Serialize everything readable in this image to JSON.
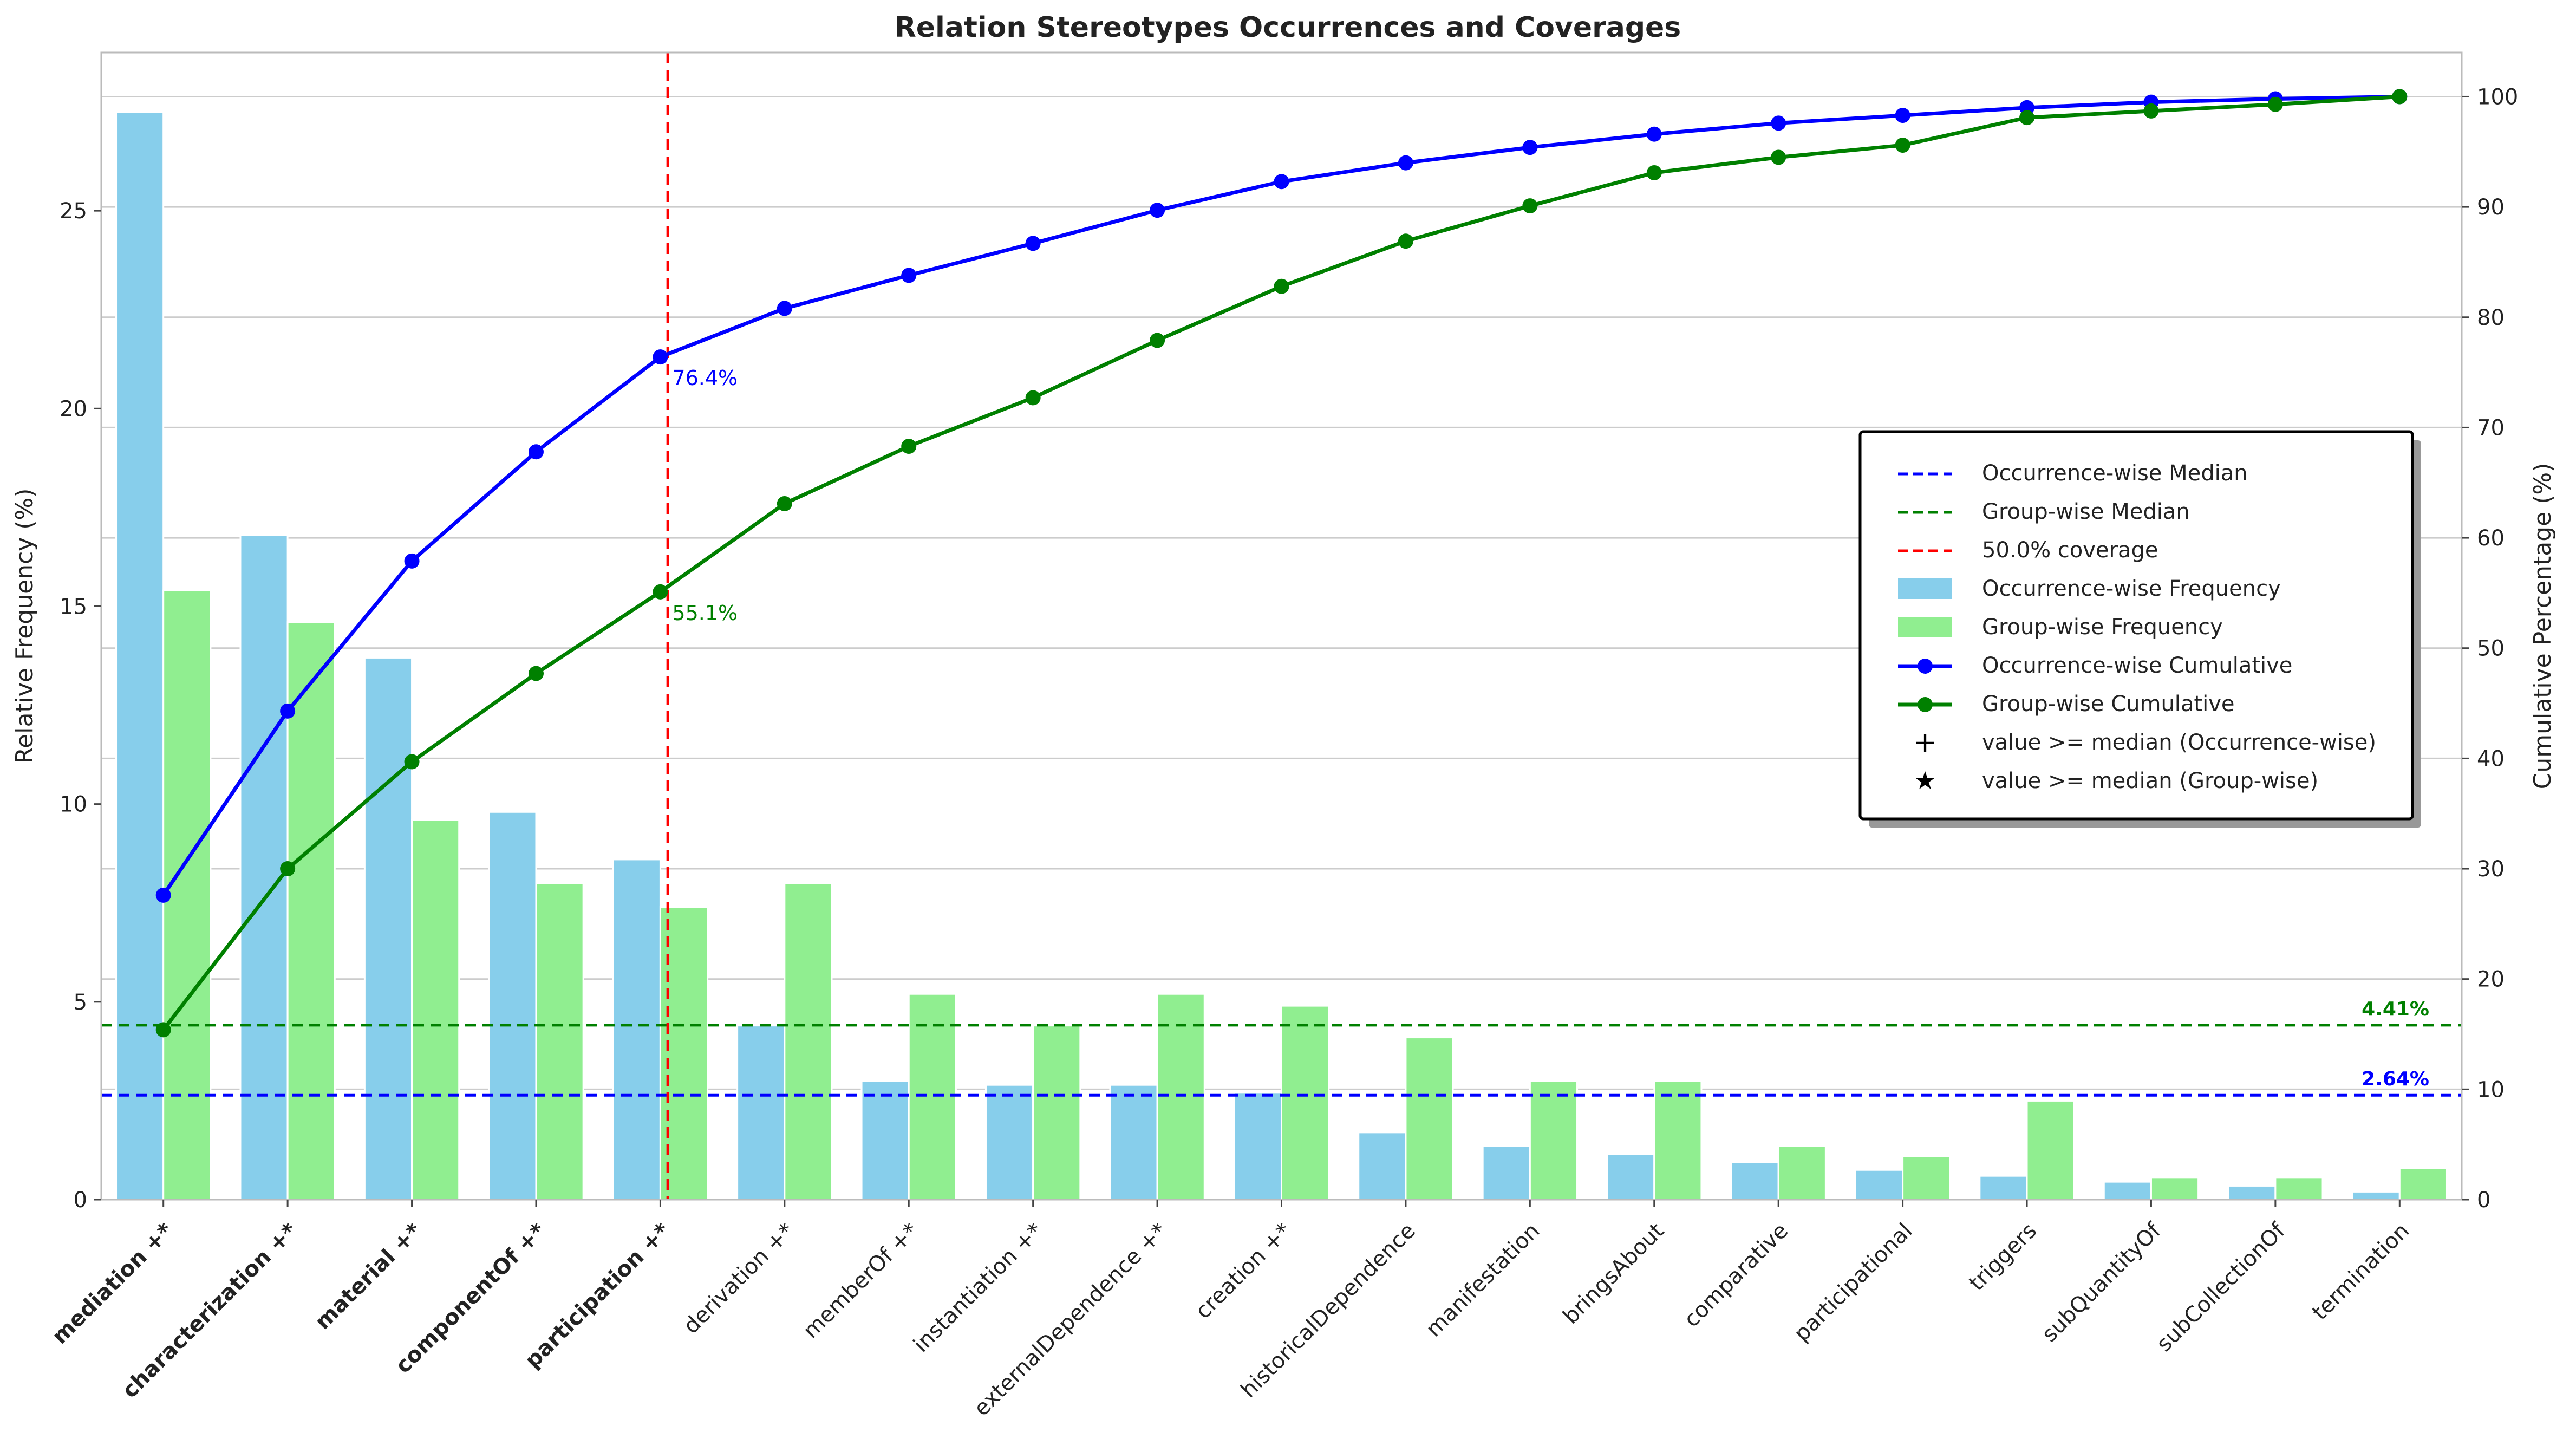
{
  "chart_data": {
    "type": "bar",
    "title": "Relation Stereotypes Occurrences and Coverages",
    "ylabel_left": "Relative Frequency (%)",
    "ylabel_right": "Cumulative Percentage (%)",
    "xlabel": "",
    "ylim_left": [
      0,
      29
    ],
    "ylim_right": [
      0,
      104
    ],
    "yticks_left": [
      0,
      5,
      10,
      15,
      20,
      25
    ],
    "yticks_right": [
      0,
      10,
      20,
      30,
      40,
      50,
      60,
      70,
      80,
      90,
      100
    ],
    "grid": "horizontal",
    "legend_placement": "center-right",
    "categories": [
      "mediation +*",
      "characterization +*",
      "material +*",
      "componentOf +*",
      "participation +*",
      "derivation +*",
      "memberOf +*",
      "instantiation +*",
      "externalDependence +*",
      "creation +*",
      "historicalDependence",
      "manifestation",
      "bringsAbout",
      "comparative",
      "participational",
      "triggers",
      "subQuantityOf",
      "subCollectionOf",
      "termination"
    ],
    "bold_categories": [
      0,
      1,
      2,
      3,
      4
    ],
    "series": [
      {
        "name": "Occurrence-wise Frequency",
        "kind": "bar",
        "axis": "left",
        "color": "#87CEEB",
        "values": [
          27.5,
          16.8,
          13.7,
          9.8,
          8.6,
          4.4,
          3.0,
          2.9,
          2.9,
          2.7,
          1.7,
          1.35,
          1.15,
          0.95,
          0.75,
          0.6,
          0.45,
          0.35,
          0.2
        ]
      },
      {
        "name": "Group-wise Frequency",
        "kind": "bar",
        "axis": "left",
        "color": "#90EE90",
        "values": [
          15.4,
          14.6,
          9.6,
          8.0,
          7.4,
          8.0,
          5.2,
          4.4,
          5.2,
          4.9,
          4.1,
          3.0,
          3.0,
          1.35,
          1.1,
          2.5,
          0.55,
          0.55,
          0.8
        ]
      },
      {
        "name": "Occurrence-wise Cumulative",
        "kind": "line",
        "axis": "right",
        "color": "#0000FF",
        "values": [
          27.6,
          44.3,
          57.9,
          67.8,
          76.4,
          80.8,
          83.8,
          86.7,
          89.7,
          92.3,
          94.0,
          95.4,
          96.6,
          97.6,
          98.3,
          99.0,
          99.5,
          99.8,
          100.0
        ]
      },
      {
        "name": "Group-wise Cumulative",
        "kind": "line",
        "axis": "right",
        "color": "#008000",
        "values": [
          15.4,
          30.0,
          39.7,
          47.7,
          55.1,
          63.1,
          68.3,
          72.7,
          77.9,
          82.8,
          86.9,
          90.1,
          93.1,
          94.5,
          95.6,
          98.1,
          98.7,
          99.3,
          100.0
        ]
      }
    ],
    "reference_lines": [
      {
        "name": "Occurrence-wise Median",
        "axis": "left",
        "value": 2.64,
        "label": "2.64%",
        "color": "#0000FF"
      },
      {
        "name": "Group-wise Median",
        "axis": "left",
        "value": 4.41,
        "label": "4.41%",
        "color": "#008000"
      }
    ],
    "coverage_line": {
      "name": "50.0% coverage",
      "index": 4,
      "color": "#FF0000"
    },
    "annotations": [
      {
        "text": "76.4%",
        "index": 4,
        "series": 2,
        "color": "#0000FF"
      },
      {
        "text": "55.1%",
        "index": 4,
        "series": 3,
        "color": "#008000"
      }
    ],
    "legend": [
      {
        "label": "Occurrence-wise Median",
        "kind": "dashed",
        "color": "#0000FF"
      },
      {
        "label": "Group-wise Median",
        "kind": "dashed",
        "color": "#008000"
      },
      {
        "label": "50.0% coverage",
        "kind": "dashed",
        "color": "#FF0000"
      },
      {
        "label": "Occurrence-wise Frequency",
        "kind": "patch",
        "color": "#87CEEB"
      },
      {
        "label": "Group-wise Frequency",
        "kind": "patch",
        "color": "#90EE90"
      },
      {
        "label": "Occurrence-wise Cumulative",
        "kind": "line-marker",
        "color": "#0000FF"
      },
      {
        "label": "Group-wise Cumulative",
        "kind": "line-marker",
        "color": "#008000"
      },
      {
        "label": "value >= median (Occurrence-wise)",
        "kind": "plus",
        "color": "#000000"
      },
      {
        "label": "value >= median (Group-wise)",
        "kind": "star",
        "color": "#000000"
      }
    ]
  }
}
